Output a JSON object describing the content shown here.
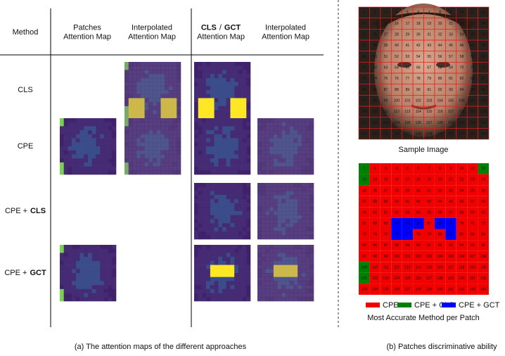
{
  "table": {
    "headers": [
      {
        "lines": [
          "Method"
        ]
      },
      {
        "lines": [
          "Patches",
          "Attention Map"
        ]
      },
      {
        "lines": [
          "Interpolated",
          "Attention Map"
        ]
      },
      {
        "bold_a": "CLS",
        "sep": "/",
        "bold_b": "GCT",
        "line2": "Attention Map"
      },
      {
        "lines": [
          "Interpolated",
          "Attention Map"
        ]
      }
    ],
    "rows": [
      {
        "label": "CLS"
      },
      {
        "label": "CPE"
      },
      {
        "label": "CPE +",
        "bold": "CLS"
      },
      {
        "label": "CPE +",
        "bold": "GCT"
      }
    ],
    "caption": "(a) The attention maps of the different approaches"
  },
  "sample": {
    "caption": "Sample Image"
  },
  "patch_grid": {
    "labels": [
      1,
      2,
      3,
      4,
      5,
      6,
      7,
      8,
      9,
      10,
      11,
      12,
      13,
      14,
      15,
      16,
      17,
      18,
      19,
      20,
      21,
      22,
      23,
      24,
      25,
      26,
      27,
      28,
      29,
      30,
      31,
      32,
      33,
      34,
      35,
      36,
      37,
      38,
      39,
      40,
      41,
      42,
      43,
      44,
      45,
      46,
      47,
      48,
      49,
      50,
      51,
      52,
      53,
      54,
      55,
      56,
      57,
      58,
      59,
      60,
      61,
      62,
      63,
      64,
      65,
      66,
      67,
      68,
      69,
      70,
      71,
      72,
      73,
      74,
      75,
      76,
      77,
      78,
      79,
      80,
      81,
      82,
      83,
      84,
      85,
      86,
      87,
      88,
      89,
      90,
      91,
      92,
      93,
      94,
      95,
      96,
      97,
      98,
      99,
      100,
      101,
      102,
      103,
      104,
      105,
      106,
      107,
      108,
      109,
      110,
      111,
      112,
      113,
      114,
      115,
      116,
      117,
      118,
      119,
      120,
      121,
      122,
      123,
      124,
      125,
      126,
      127,
      128,
      129,
      130,
      131,
      132,
      133,
      134,
      135,
      136,
      137,
      138,
      139,
      140,
      141,
      142,
      143,
      144
    ],
    "method": [
      1,
      0,
      0,
      0,
      0,
      0,
      0,
      0,
      0,
      0,
      0,
      1,
      1,
      0,
      0,
      0,
      0,
      0,
      0,
      0,
      0,
      0,
      0,
      0,
      0,
      0,
      0,
      0,
      0,
      0,
      0,
      0,
      0,
      0,
      0,
      0,
      0,
      0,
      0,
      0,
      0,
      0,
      0,
      0,
      0,
      0,
      0,
      0,
      0,
      0,
      0,
      0,
      0,
      0,
      0,
      0,
      0,
      0,
      0,
      0,
      0,
      0,
      0,
      2,
      2,
      2,
      0,
      2,
      2,
      0,
      0,
      0,
      0,
      0,
      0,
      2,
      2,
      0,
      0,
      0,
      2,
      0,
      0,
      0,
      0,
      0,
      0,
      0,
      0,
      0,
      0,
      0,
      0,
      0,
      0,
      0,
      0,
      0,
      0,
      0,
      0,
      0,
      0,
      0,
      0,
      0,
      0,
      0,
      1,
      0,
      0,
      0,
      0,
      0,
      0,
      0,
      0,
      0,
      0,
      0,
      1,
      0,
      0,
      0,
      0,
      0,
      0,
      0,
      0,
      0,
      0,
      0,
      0,
      0,
      0,
      0,
      0,
      0,
      0,
      0,
      0,
      0,
      0,
      0
    ],
    "legend": [
      {
        "name": "CPE",
        "color": "#f00000"
      },
      {
        "name": "CPE + CLS",
        "color": "#008000"
      },
      {
        "name": "CPE + GCT",
        "color": "#0000ff"
      }
    ],
    "caption": "Most Accurate Method per Patch"
  },
  "caption_b": "(b) Patches discriminative ability"
}
